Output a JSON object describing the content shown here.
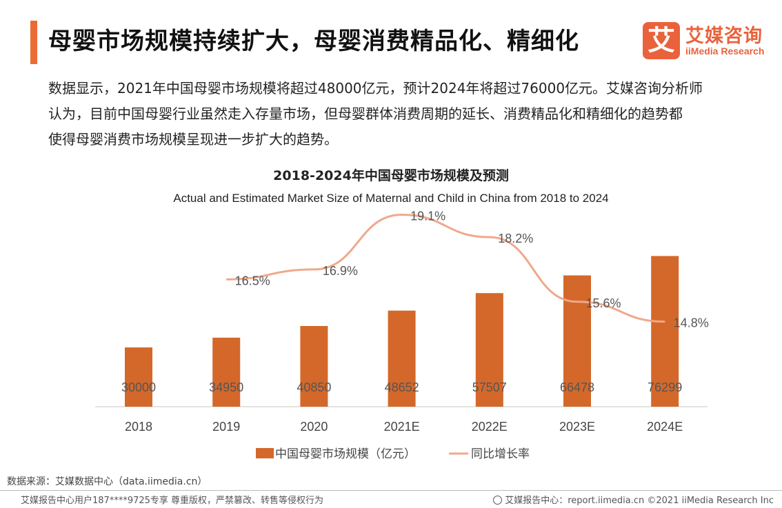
{
  "header": {
    "headline": "母婴市场规模持续扩大，母婴消费精品化、精细化",
    "logo_mark": "艾",
    "logo_cn": "艾媒咨询",
    "logo_en": "iiMedia Research"
  },
  "intro": {
    "line1": "数据显示，2021年中国母婴市场规模将超过48000亿元，预计2024年将超过76000亿元。艾媒咨询分析师",
    "line2": "认为，目前中国母婴行业虽然走入存量市场，但母婴群体消费周期的延长、消费精品化和精细化的趋势都",
    "line3": "使得母婴消费市场规模呈现进一步扩大的趋势。"
  },
  "chart_data": {
    "type": "bar",
    "title": "2018-2024年中国母婴市场规模及预测",
    "subtitle": "Actual and Estimated Market Size of Maternal and Child in China from 2018 to 2024",
    "categories": [
      "2018",
      "2019",
      "2020",
      "2021E",
      "2022E",
      "2023E",
      "2024E"
    ],
    "series": [
      {
        "name": "中国母婴市场规模（亿元）",
        "type": "bar",
        "color": "#d4682a",
        "values": [
          30000,
          34950,
          40850,
          48652,
          57507,
          66478,
          76299
        ],
        "labels": [
          "30000",
          "34950",
          "40850",
          "48652",
          "57507",
          "66478",
          "76299"
        ]
      },
      {
        "name": "同比增长率",
        "type": "line",
        "color": "#f0a88a",
        "values": [
          null,
          16.5,
          16.9,
          19.1,
          18.2,
          15.6,
          14.8
        ],
        "labels": [
          "",
          "16.5%",
          "16.9%",
          "19.1%",
          "18.2%",
          "15.6%",
          "14.8%"
        ]
      }
    ],
    "legend_position": "bottom",
    "grid": false
  },
  "footer": {
    "source": "数据来源：艾媒数据中心（data.iimedia.cn）",
    "left": "艾媒报告中心用户187****9725专享 尊重版权，严禁篡改、转售等侵权行为",
    "right": "艾媒报告中心：report.iimedia.cn  ©2021  iiMedia Research  Inc"
  }
}
